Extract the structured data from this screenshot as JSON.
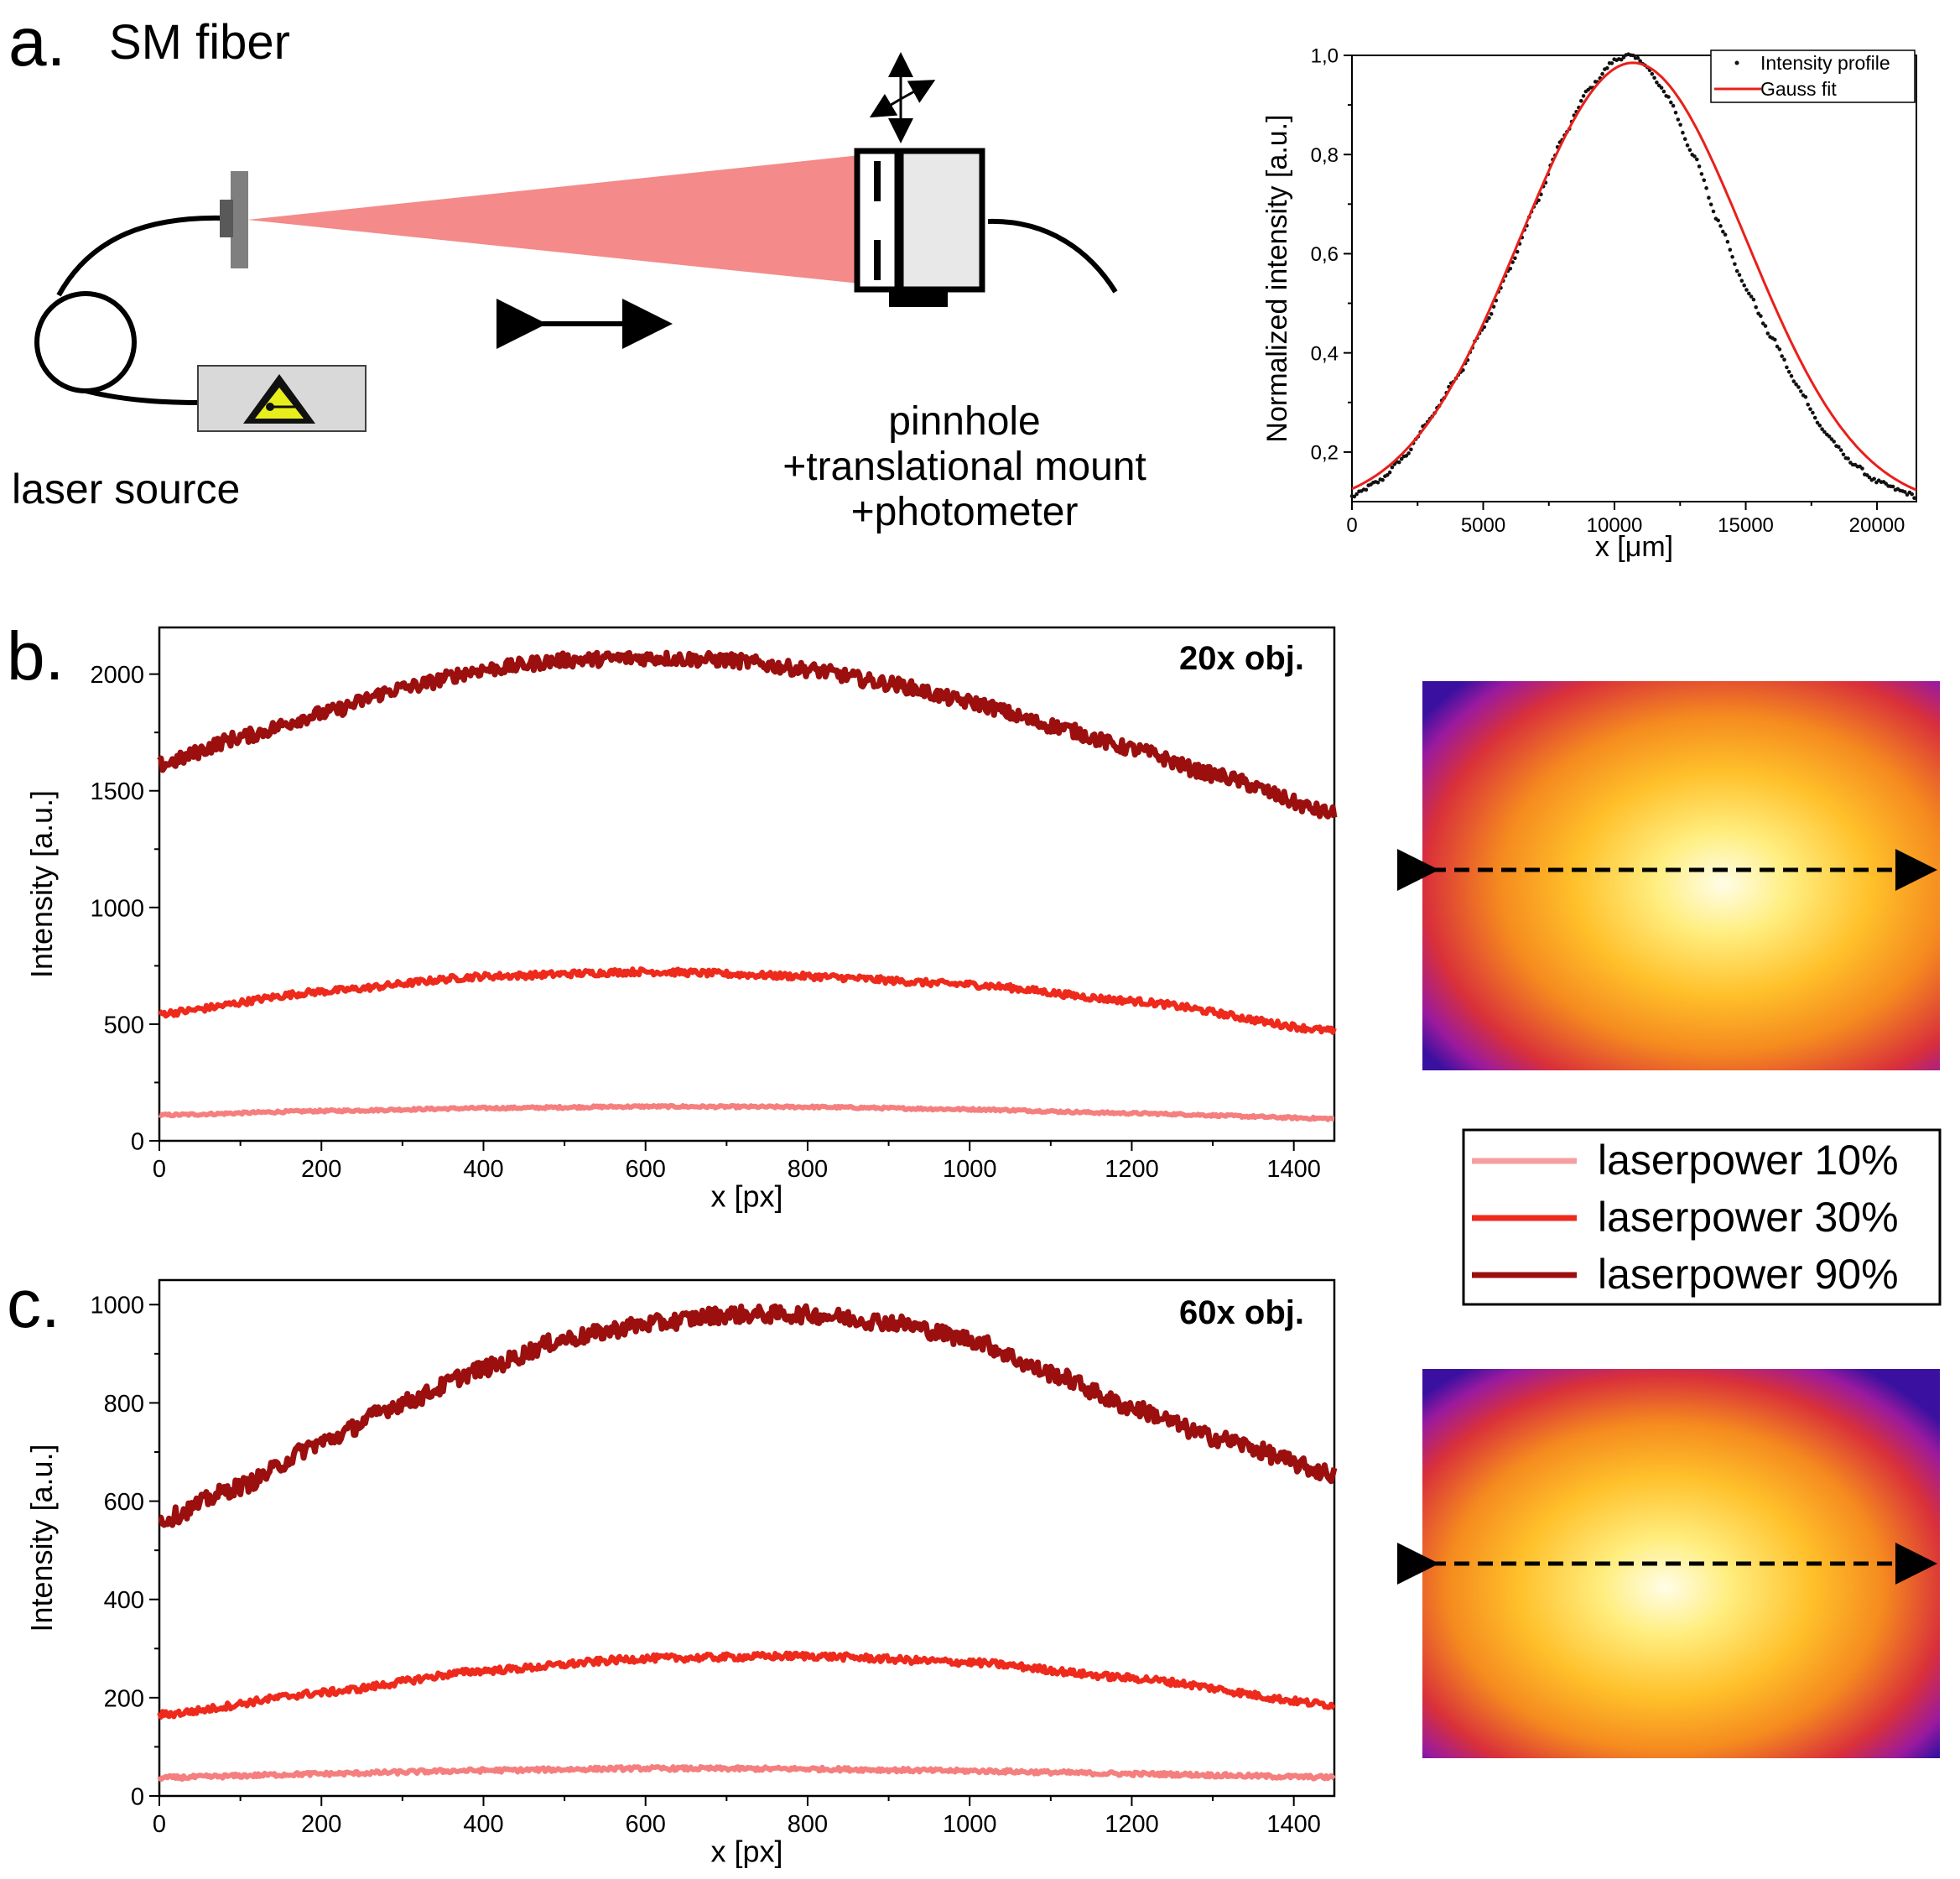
{
  "panel_a": {
    "letter": "a.",
    "title": "SM fiber",
    "source_label": "laser source",
    "detector_label_lines": [
      "pinnhole",
      "+translational mount",
      "+photometer"
    ]
  },
  "panel_b": {
    "letter": "b.",
    "objective_label": "20x obj."
  },
  "panel_c": {
    "letter": "c.",
    "objective_label": "60x obj."
  },
  "legend": {
    "items": [
      {
        "label": "laserpower 10%",
        "color": "#f5a0a0"
      },
      {
        "label": "laserpower 30%",
        "color": "#ee2a1c"
      },
      {
        "label": "laserpower 90%",
        "color": "#9b0f0f"
      }
    ]
  },
  "colors": {
    "beam": "#f48a8a",
    "low": "#f57f7f",
    "mid": "#ee2a1c",
    "high": "#9b0f0f",
    "gauss": "#e8201a",
    "warning_yellow": "#e8ee1c",
    "housing": "#d9d9d9"
  },
  "chart_data": [
    {
      "id": "gauss-profile",
      "type": "scatter",
      "xlabel": "x [μm]",
      "ylabel": "Normalized intensity [a.u.]",
      "xlim": [
        0,
        21500
      ],
      "ylim": [
        0.1,
        1.0
      ],
      "xticks": [
        0,
        5000,
        10000,
        15000,
        20000
      ],
      "yticks": [
        0.2,
        0.4,
        0.6,
        0.8,
        1.0
      ],
      "ytick_labels": [
        "0,2",
        "0,4",
        "0,6",
        "0,8",
        "1,0"
      ],
      "legend_position": "top-right",
      "series": [
        {
          "name": "Intensity profile",
          "style": "points",
          "x": [
            0,
            1000,
            2000,
            3000,
            4000,
            5000,
            6000,
            7000,
            8000,
            9000,
            10000,
            10500,
            11000,
            12000,
            13000,
            14000,
            15000,
            16000,
            17000,
            18000,
            19000,
            20000,
            21000,
            21500
          ],
          "y": [
            0.11,
            0.14,
            0.19,
            0.27,
            0.35,
            0.45,
            0.57,
            0.7,
            0.83,
            0.93,
            0.99,
            1.0,
            0.99,
            0.92,
            0.8,
            0.66,
            0.53,
            0.43,
            0.33,
            0.24,
            0.18,
            0.14,
            0.12,
            0.11
          ]
        },
        {
          "name": "Gauss fit",
          "style": "line",
          "function": "gauss",
          "y0": 0.085,
          "A": 0.9,
          "xc": 10700,
          "sigma": 4300
        }
      ]
    },
    {
      "id": "panel-b",
      "type": "line",
      "xlabel": "x [px]",
      "ylabel": "Intensity [a.u.]",
      "xlim": [
        0,
        1450
      ],
      "ylim": [
        0,
        2200
      ],
      "xticks": [
        0,
        200,
        400,
        600,
        800,
        1000,
        1200,
        1400
      ],
      "yticks": [
        0,
        500,
        1000,
        1500,
        2000
      ],
      "series": [
        {
          "name": "laserpower 10%",
          "x": [
            0,
            200,
            400,
            600,
            800,
            1000,
            1200,
            1450
          ],
          "y": [
            110,
            128,
            140,
            147,
            145,
            135,
            118,
            95
          ]
        },
        {
          "name": "laserpower 30%",
          "x": [
            0,
            200,
            400,
            600,
            800,
            1000,
            1200,
            1450
          ],
          "y": [
            545,
            640,
            705,
            725,
            705,
            670,
            600,
            470
          ]
        },
        {
          "name": "laserpower 90%",
          "x": [
            0,
            100,
            200,
            300,
            400,
            500,
            600,
            700,
            800,
            900,
            1000,
            1100,
            1200,
            1300,
            1450
          ],
          "y": [
            1610,
            1730,
            1830,
            1940,
            2020,
            2060,
            2070,
            2060,
            2020,
            1960,
            1880,
            1780,
            1680,
            1570,
            1400
          ]
        }
      ]
    },
    {
      "id": "panel-c",
      "type": "line",
      "xlabel": "x [px]",
      "ylabel": "Intensity [a.u.]",
      "xlim": [
        0,
        1450
      ],
      "ylim": [
        0,
        1050
      ],
      "xticks": [
        0,
        200,
        400,
        600,
        800,
        1000,
        1200,
        1400
      ],
      "yticks": [
        0,
        200,
        400,
        600,
        800,
        1000
      ],
      "series": [
        {
          "name": "laserpower 10%",
          "x": [
            0,
            200,
            400,
            600,
            800,
            1000,
            1200,
            1450
          ],
          "y": [
            37,
            45,
            52,
            56,
            55,
            51,
            45,
            38
          ]
        },
        {
          "name": "laserpower 30%",
          "x": [
            0,
            200,
            400,
            600,
            800,
            1000,
            1200,
            1450
          ],
          "y": [
            165,
            210,
            255,
            280,
            285,
            272,
            240,
            185
          ]
        },
        {
          "name": "laserpower 90%",
          "x": [
            0,
            100,
            200,
            300,
            400,
            500,
            600,
            700,
            800,
            900,
            1000,
            1100,
            1200,
            1300,
            1450
          ],
          "y": [
            560,
            630,
            720,
            800,
            870,
            930,
            960,
            980,
            980,
            965,
            930,
            860,
            790,
            730,
            655
          ]
        }
      ]
    }
  ]
}
